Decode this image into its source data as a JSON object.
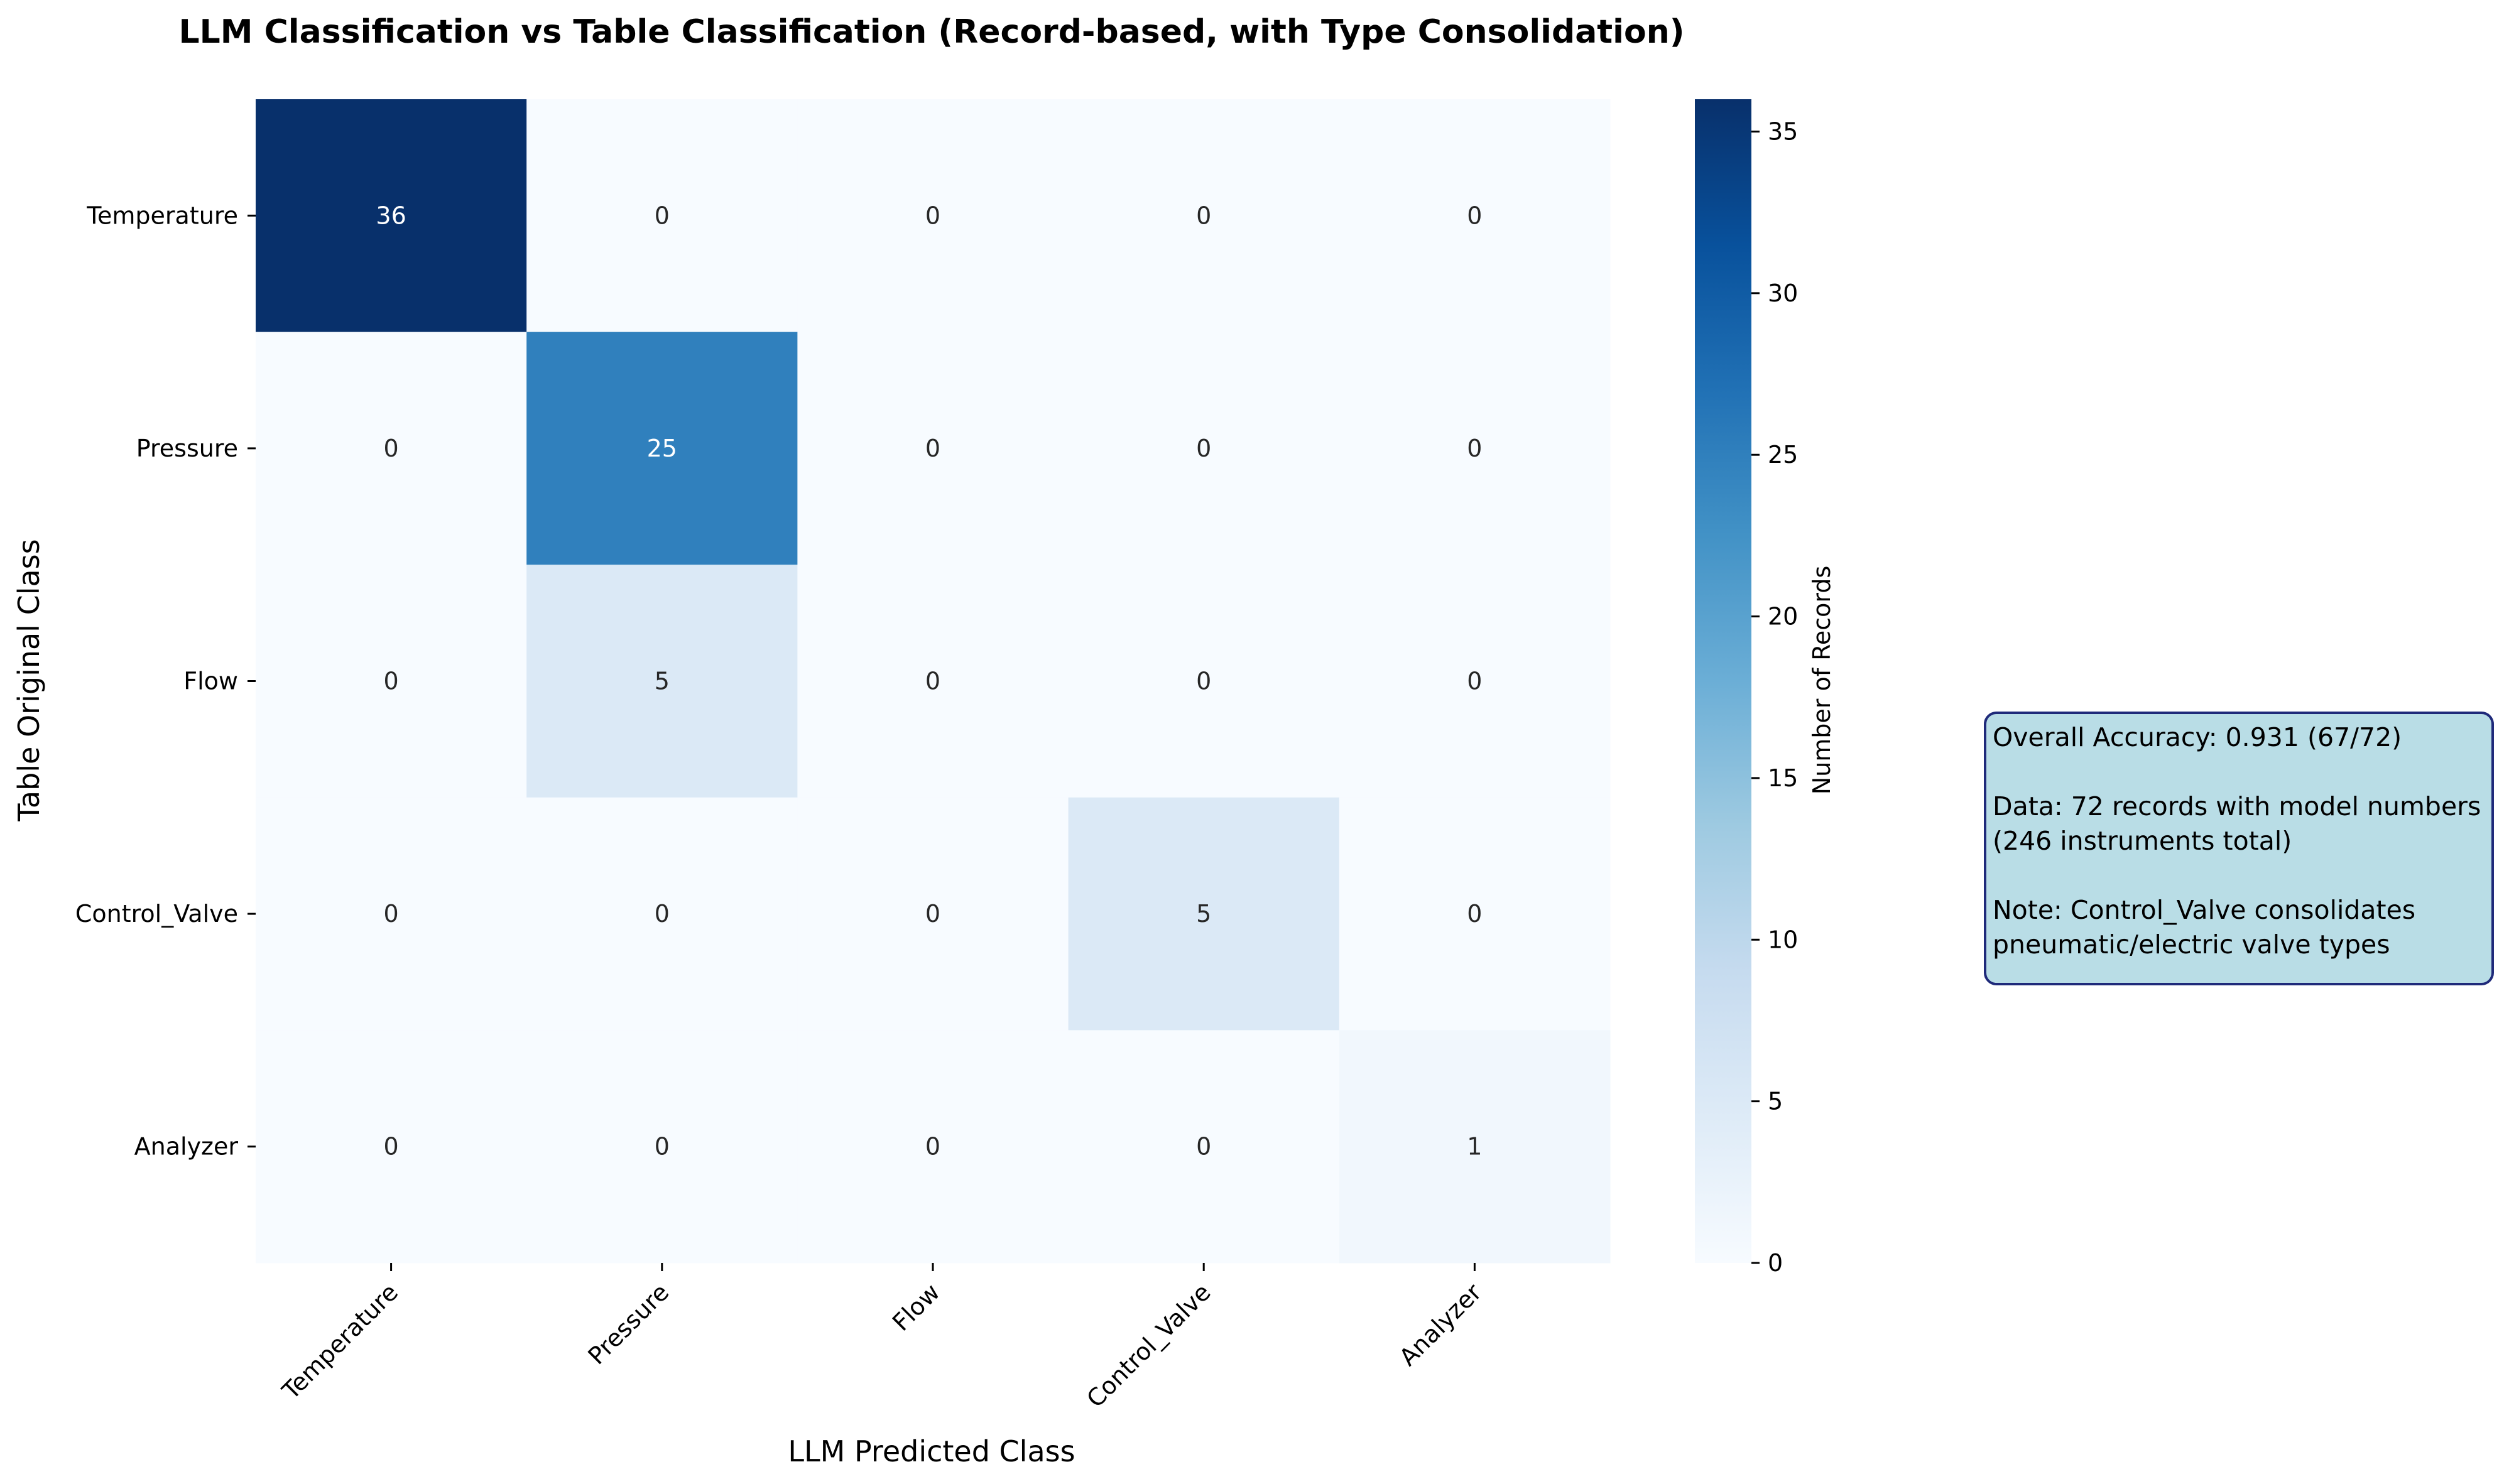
{
  "chart_data": {
    "type": "heatmap",
    "title": "LLM Classification vs Table Classification (Record-based, with Type Consolidation)",
    "xlabel": "LLM Predicted Class",
    "ylabel": "Table Original Class",
    "x_categories": [
      "Temperature",
      "Pressure",
      "Flow",
      "Control_Valve",
      "Analyzer"
    ],
    "y_categories": [
      "Temperature",
      "Pressure",
      "Flow",
      "Control_Valve",
      "Analyzer"
    ],
    "values": [
      [
        36,
        0,
        0,
        0,
        0
      ],
      [
        0,
        25,
        0,
        0,
        0
      ],
      [
        0,
        5,
        0,
        0,
        0
      ],
      [
        0,
        0,
        0,
        5,
        0
      ],
      [
        0,
        0,
        0,
        0,
        1
      ]
    ],
    "colormap": "Blues",
    "colorbar": {
      "label": "Number of Records",
      "range": [
        0,
        36
      ],
      "ticks": [
        0,
        5,
        10,
        15,
        20,
        25,
        30,
        35
      ]
    },
    "annotation": {
      "line1": "Overall Accuracy: 0.931 (67/72)",
      "line2": "Data: 72 records with model numbers",
      "line3": "(246 instruments total)",
      "line4": "Note: Control_Valve consolidates",
      "line5": "pneumatic/electric valve types"
    }
  }
}
